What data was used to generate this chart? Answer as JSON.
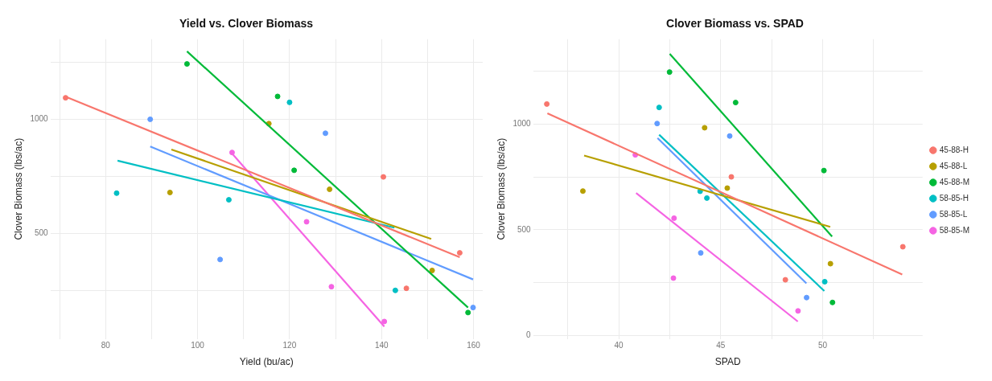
{
  "chart_data": [
    {
      "type": "scatter",
      "title": "Yield vs. Clover Biomass",
      "xlabel": "Yield (bu/ac)",
      "ylabel": "Clover Biomass (lbs/ac)",
      "xlim": [
        68,
        162
      ],
      "ylim": [
        40,
        1350
      ],
      "xticks": [
        {
          "value": 70,
          "label": null
        },
        80,
        {
          "value": 90,
          "label": null
        },
        100,
        {
          "value": 110,
          "label": null
        },
        120,
        {
          "value": 130,
          "label": null
        },
        140,
        {
          "value": 150,
          "label": null
        },
        160
      ],
      "yticks": [
        {
          "value": 250,
          "label": null
        },
        500,
        {
          "value": 750,
          "label": null
        },
        1000,
        {
          "value": 1250,
          "label": null
        }
      ],
      "grid": true,
      "legend": false,
      "series": [
        {
          "color": "#f8766d",
          "marker": "circle",
          "x": [
            71.3,
            140.4,
            157,
            145.4
          ],
          "values": [
            1094,
            748,
            416,
            261
          ]
        },
        {
          "color": "#b79f00",
          "marker": "circle",
          "x": [
            94,
            115.5,
            128.7,
            151
          ],
          "values": [
            680,
            981,
            694,
            339
          ]
        },
        {
          "color": "#00ba38",
          "marker": "circle",
          "x": [
            97.7,
            117.4,
            121,
            158.8
          ],
          "values": [
            1242,
            1100,
            777,
            155
          ]
        },
        {
          "color": "#00bfc4",
          "marker": "circle",
          "x": [
            82.4,
            106.8,
            120,
            143
          ],
          "values": [
            677,
            648,
            1074,
            252
          ]
        },
        {
          "color": "#619cff",
          "marker": "circle",
          "x": [
            89.7,
            104.9,
            127.8,
            159.9
          ],
          "values": [
            1000,
            387,
            939,
            177
          ]
        },
        {
          "color": "#f564e3",
          "marker": "circle",
          "x": [
            107.5,
            123.7,
            129.1,
            140.6
          ],
          "values": [
            855,
            552,
            268,
            116
          ]
        },
        {
          "type": "line",
          "color": "#f8766d",
          "marker": "none",
          "x": [
            71.5,
            157
          ],
          "values": [
            1097,
            397
          ]
        },
        {
          "type": "line",
          "color": "#b79f00",
          "marker": "none",
          "x": [
            94.3,
            150.8
          ],
          "values": [
            868,
            477
          ]
        },
        {
          "type": "line",
          "color": "#00ba38",
          "marker": "none",
          "x": [
            97.7,
            158.8
          ],
          "values": [
            1297,
            177
          ]
        },
        {
          "type": "line",
          "color": "#00bfc4",
          "marker": "none",
          "x": [
            82.6,
            142.8
          ],
          "values": [
            819,
            526
          ]
        },
        {
          "type": "line",
          "color": "#619cff",
          "marker": "none",
          "x": [
            89.7,
            159.9
          ],
          "values": [
            881,
            300
          ]
        },
        {
          "type": "line",
          "color": "#f564e3",
          "marker": "none",
          "x": [
            107.5,
            140.6
          ],
          "values": [
            850,
            94
          ]
        }
      ]
    },
    {
      "type": "scatter",
      "title": "Clover Biomass vs. SPAD",
      "xlabel": "SPAD",
      "ylabel": "Clover Biomass (lbs/ac)",
      "xlim": [
        35.8,
        54.9
      ],
      "ylim": [
        -15,
        1400
      ],
      "xticks": [
        {
          "value": 37.5,
          "label": null
        },
        40,
        {
          "value": 42.5,
          "label": null
        },
        45,
        {
          "value": 47.5,
          "label": null
        },
        50,
        {
          "value": 52.5,
          "label": null
        }
      ],
      "yticks": [
        0,
        {
          "value": 250,
          "label": null
        },
        500,
        {
          "value": 750,
          "label": null
        },
        1000,
        {
          "value": 1250,
          "label": null
        }
      ],
      "grid": true,
      "legend": "right",
      "series": [
        {
          "name": "45-88-H",
          "color": "#f8766d",
          "marker": "circle",
          "x": [
            36.47,
            45.52,
            48.17,
            53.93
          ],
          "values": [
            1094,
            750,
            264,
            420
          ]
        },
        {
          "name": "45-88-L",
          "color": "#b79f00",
          "marker": "circle",
          "x": [
            38.24,
            44.21,
            45.32,
            50.38
          ],
          "values": [
            683,
            982,
            697,
            340
          ]
        },
        {
          "name": "45-88-M",
          "color": "#00ba38",
          "marker": "circle",
          "x": [
            42.49,
            45.73,
            50.06,
            50.48
          ],
          "values": [
            1245,
            1101,
            780,
            157
          ]
        },
        {
          "name": "58-85-H",
          "color": "#00bfc4",
          "marker": "circle",
          "x": [
            41.98,
            43.99,
            44.32,
            50.1
          ],
          "values": [
            1078,
            682,
            650,
            255
          ]
        },
        {
          "name": "58-85-L",
          "color": "#619cff",
          "marker": "circle",
          "x": [
            41.88,
            45.44,
            44.02,
            49.21
          ],
          "values": [
            1002,
            943,
            391,
            180
          ]
        },
        {
          "name": "58-85-M",
          "color": "#f564e3",
          "marker": "circle",
          "x": [
            40.81,
            42.71,
            42.68,
            48.79
          ],
          "values": [
            854,
            555,
            272,
            117
          ]
        },
        {
          "type": "line",
          "color": "#f8766d",
          "marker": "none",
          "x": [
            36.5,
            53.9
          ],
          "values": [
            1050,
            289
          ]
        },
        {
          "type": "line",
          "color": "#b79f00",
          "marker": "none",
          "x": [
            38.3,
            50.37
          ],
          "values": [
            851,
            514
          ]
        },
        {
          "type": "line",
          "color": "#00ba38",
          "marker": "none",
          "x": [
            42.5,
            50.46
          ],
          "values": [
            1331,
            468
          ]
        },
        {
          "type": "line",
          "color": "#00bfc4",
          "marker": "none",
          "x": [
            41.98,
            50.08
          ],
          "values": [
            949,
            211
          ]
        },
        {
          "type": "line",
          "color": "#619cff",
          "marker": "none",
          "x": [
            41.9,
            49.2
          ],
          "values": [
            933,
            247
          ]
        },
        {
          "type": "line",
          "color": "#f564e3",
          "marker": "none",
          "x": [
            40.85,
            48.78
          ],
          "values": [
            674,
            67
          ]
        }
      ]
    }
  ]
}
